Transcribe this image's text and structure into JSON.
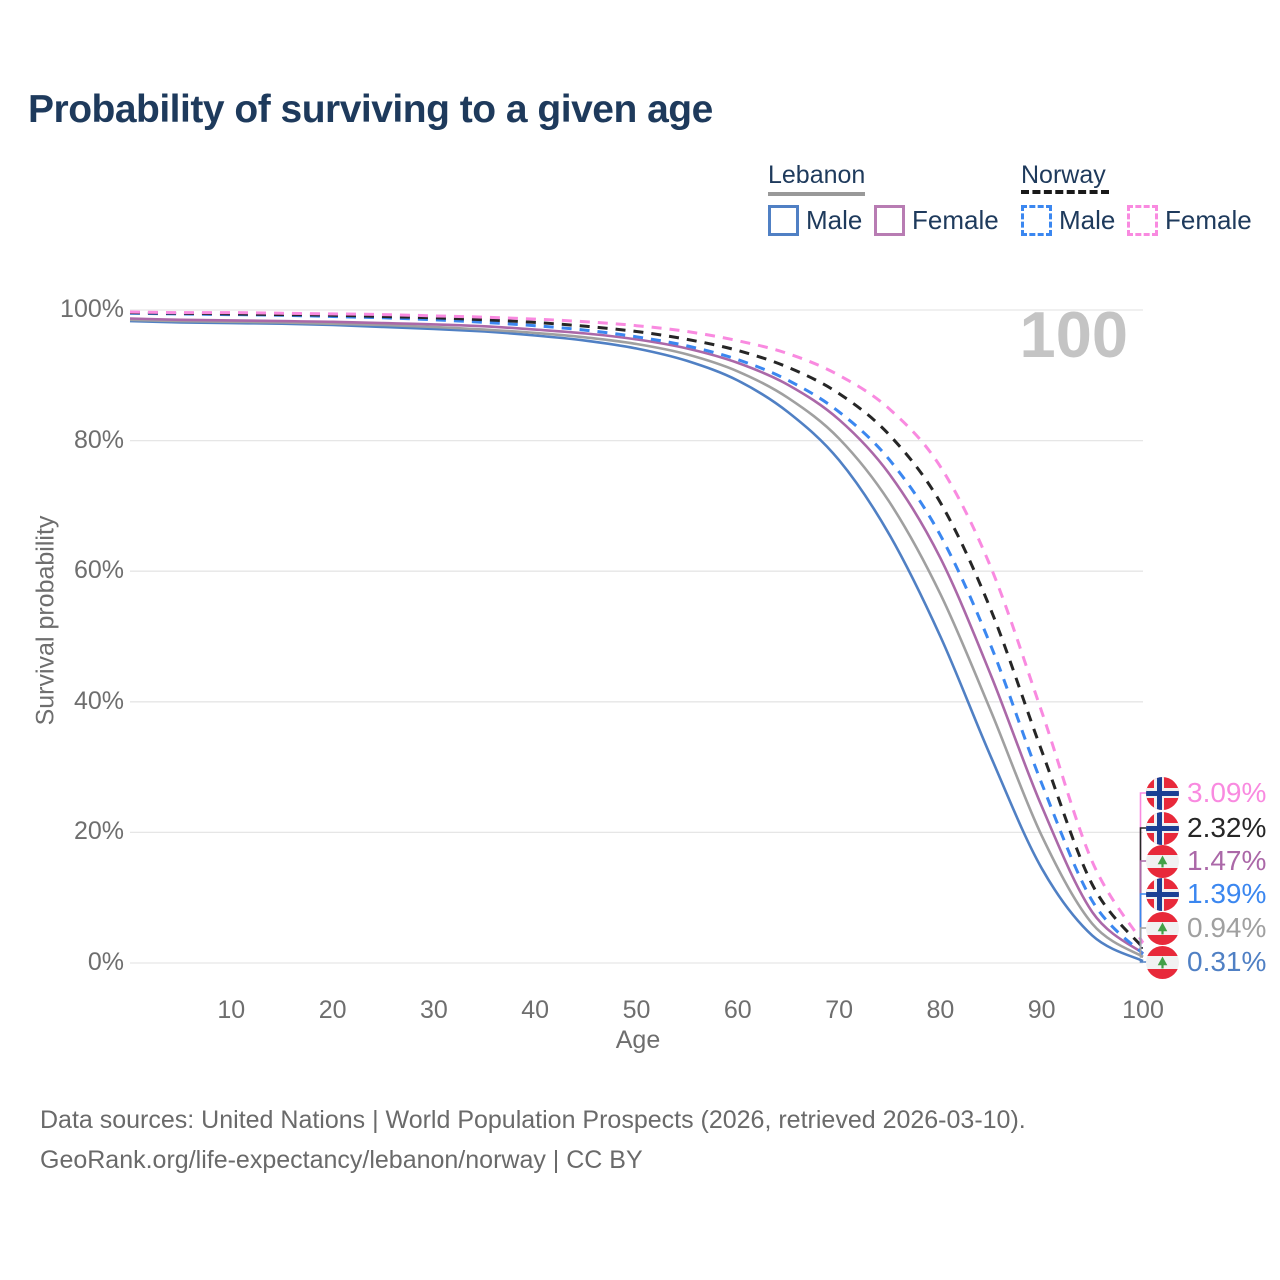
{
  "title": "Probability of surviving to a given age",
  "age_indicator": {
    "value": "100"
  },
  "legend": {
    "groups": [
      {
        "name": "Lebanon",
        "underline_style": "solid",
        "underline_color": "#999999",
        "items": [
          {
            "label": "Male",
            "color": "#5080c4",
            "line_style": "solid"
          },
          {
            "label": "Female",
            "color": "#b87cb3",
            "line_style": "solid"
          }
        ]
      },
      {
        "name": "Norway",
        "underline_style": "dashed",
        "underline_color": "#191919",
        "items": [
          {
            "label": "Male",
            "color": "#3b87f0",
            "line_style": "dashed"
          },
          {
            "label": "Female",
            "color": "#f98ae0",
            "line_style": "dashed"
          }
        ]
      }
    ]
  },
  "axes": {
    "y_label": "Survival probability",
    "x_label": "Age",
    "y_ticks": [
      {
        "label": "100%",
        "value": 100
      },
      {
        "label": "80%",
        "value": 80
      },
      {
        "label": "60%",
        "value": 60
      },
      {
        "label": "40%",
        "value": 40
      },
      {
        "label": "20%",
        "value": 20
      },
      {
        "label": "0%",
        "value": 0
      }
    ],
    "x_ticks": [
      10,
      20,
      30,
      40,
      50,
      60,
      70,
      80,
      90,
      100
    ]
  },
  "chart_data": {
    "type": "line",
    "title": "Probability of surviving to a given age",
    "xlabel": "Age",
    "ylabel": "Survival probability",
    "xlim": [
      0,
      100
    ],
    "ylim": [
      0,
      100
    ],
    "grid": "horizontal",
    "legend_position": "top-right",
    "hover_age": 100,
    "x": [
      0,
      5,
      10,
      15,
      20,
      25,
      30,
      35,
      40,
      45,
      50,
      55,
      60,
      65,
      70,
      75,
      80,
      85,
      90,
      95,
      100
    ],
    "series": [
      {
        "name": "Lebanon Male",
        "country": "Lebanon",
        "sex": "Male",
        "color": "#5080c4",
        "line_style": "solid",
        "end_label": "0.31%",
        "values": [
          98.3,
          98.1,
          98.0,
          97.9,
          97.7,
          97.4,
          97.1,
          96.7,
          96.1,
          95.3,
          94.1,
          92.2,
          89.2,
          84.3,
          77.0,
          65.5,
          50.0,
          31.5,
          14.5,
          4.2,
          0.31
        ]
      },
      {
        "name": "Lebanon Both sexes",
        "country": "Lebanon",
        "sex": "Both",
        "color": "#a0a0a0",
        "line_style": "solid",
        "end_label": "0.94%",
        "values": [
          98.5,
          98.3,
          98.2,
          98.1,
          97.9,
          97.7,
          97.4,
          97.0,
          96.5,
          95.8,
          94.8,
          93.2,
          90.6,
          86.5,
          80.3,
          70.5,
          56.5,
          38.5,
          19.5,
          6.0,
          0.94
        ]
      },
      {
        "name": "Lebanon Female",
        "country": "Lebanon",
        "sex": "Female",
        "color": "#ab68a8",
        "line_style": "solid",
        "end_label": "1.47%",
        "values": [
          98.7,
          98.5,
          98.4,
          98.3,
          98.2,
          98.0,
          97.8,
          97.5,
          97.0,
          96.4,
          95.5,
          94.1,
          91.9,
          88.5,
          83.2,
          74.8,
          62.0,
          44.0,
          24.0,
          7.8,
          1.47
        ]
      },
      {
        "name": "Norway Male",
        "country": "Norway",
        "sex": "Male",
        "color": "#3b87f0",
        "line_style": "dashed",
        "end_label": "1.39%",
        "values": [
          99.5,
          99.4,
          99.3,
          99.2,
          99.0,
          98.8,
          98.5,
          98.1,
          97.6,
          96.9,
          95.9,
          94.5,
          92.4,
          89.2,
          84.4,
          77.0,
          65.5,
          48.5,
          27.5,
          9.5,
          1.39
        ]
      },
      {
        "name": "Norway Both sexes",
        "country": "Norway",
        "sex": "Both",
        "color": "#262626",
        "line_style": "dashed",
        "end_label": "2.32%",
        "values": [
          99.6,
          99.5,
          99.4,
          99.3,
          99.2,
          99.0,
          98.8,
          98.5,
          98.1,
          97.5,
          96.7,
          95.5,
          93.8,
          91.2,
          87.2,
          80.8,
          70.5,
          54.0,
          32.5,
          12.0,
          2.32
        ]
      },
      {
        "name": "Norway Female",
        "country": "Norway",
        "sex": "Female",
        "color": "#f98ae0",
        "line_style": "dashed",
        "end_label": "3.09%",
        "values": [
          99.7,
          99.6,
          99.6,
          99.5,
          99.4,
          99.3,
          99.1,
          98.9,
          98.6,
          98.2,
          97.6,
          96.7,
          95.3,
          93.3,
          90.0,
          84.8,
          76.0,
          60.5,
          38.5,
          15.5,
          3.09
        ]
      }
    ]
  },
  "end_labels": [
    {
      "text": "3.09%",
      "color": "#f98ae0",
      "flag": "norway",
      "series": "Norway Female"
    },
    {
      "text": "2.32%",
      "color": "#262626",
      "flag": "norway",
      "series": "Norway Both sexes"
    },
    {
      "text": "1.47%",
      "color": "#ab68a8",
      "flag": "lebanon",
      "series": "Lebanon Female"
    },
    {
      "text": "1.39%",
      "color": "#3b87f0",
      "flag": "norway",
      "series": "Norway Male"
    },
    {
      "text": "0.94%",
      "color": "#a0a0a0",
      "flag": "lebanon",
      "series": "Lebanon Both sexes"
    },
    {
      "text": "0.31%",
      "color": "#5080c4",
      "flag": "lebanon",
      "series": "Lebanon Male"
    }
  ],
  "flag_colors": {
    "red": "#e8293a",
    "white": "#f1f1f1",
    "norway_blue": "#1b3f94",
    "lebanon_green": "#43a047"
  },
  "footer": {
    "line1": "Data sources: United Nations | World Population Prospects (2026, retrieved 2026-03-10).",
    "line2": "GeoRank.org/life-expectancy/lebanon/norway | CC BY"
  },
  "grid_color": "#e6e6e6"
}
